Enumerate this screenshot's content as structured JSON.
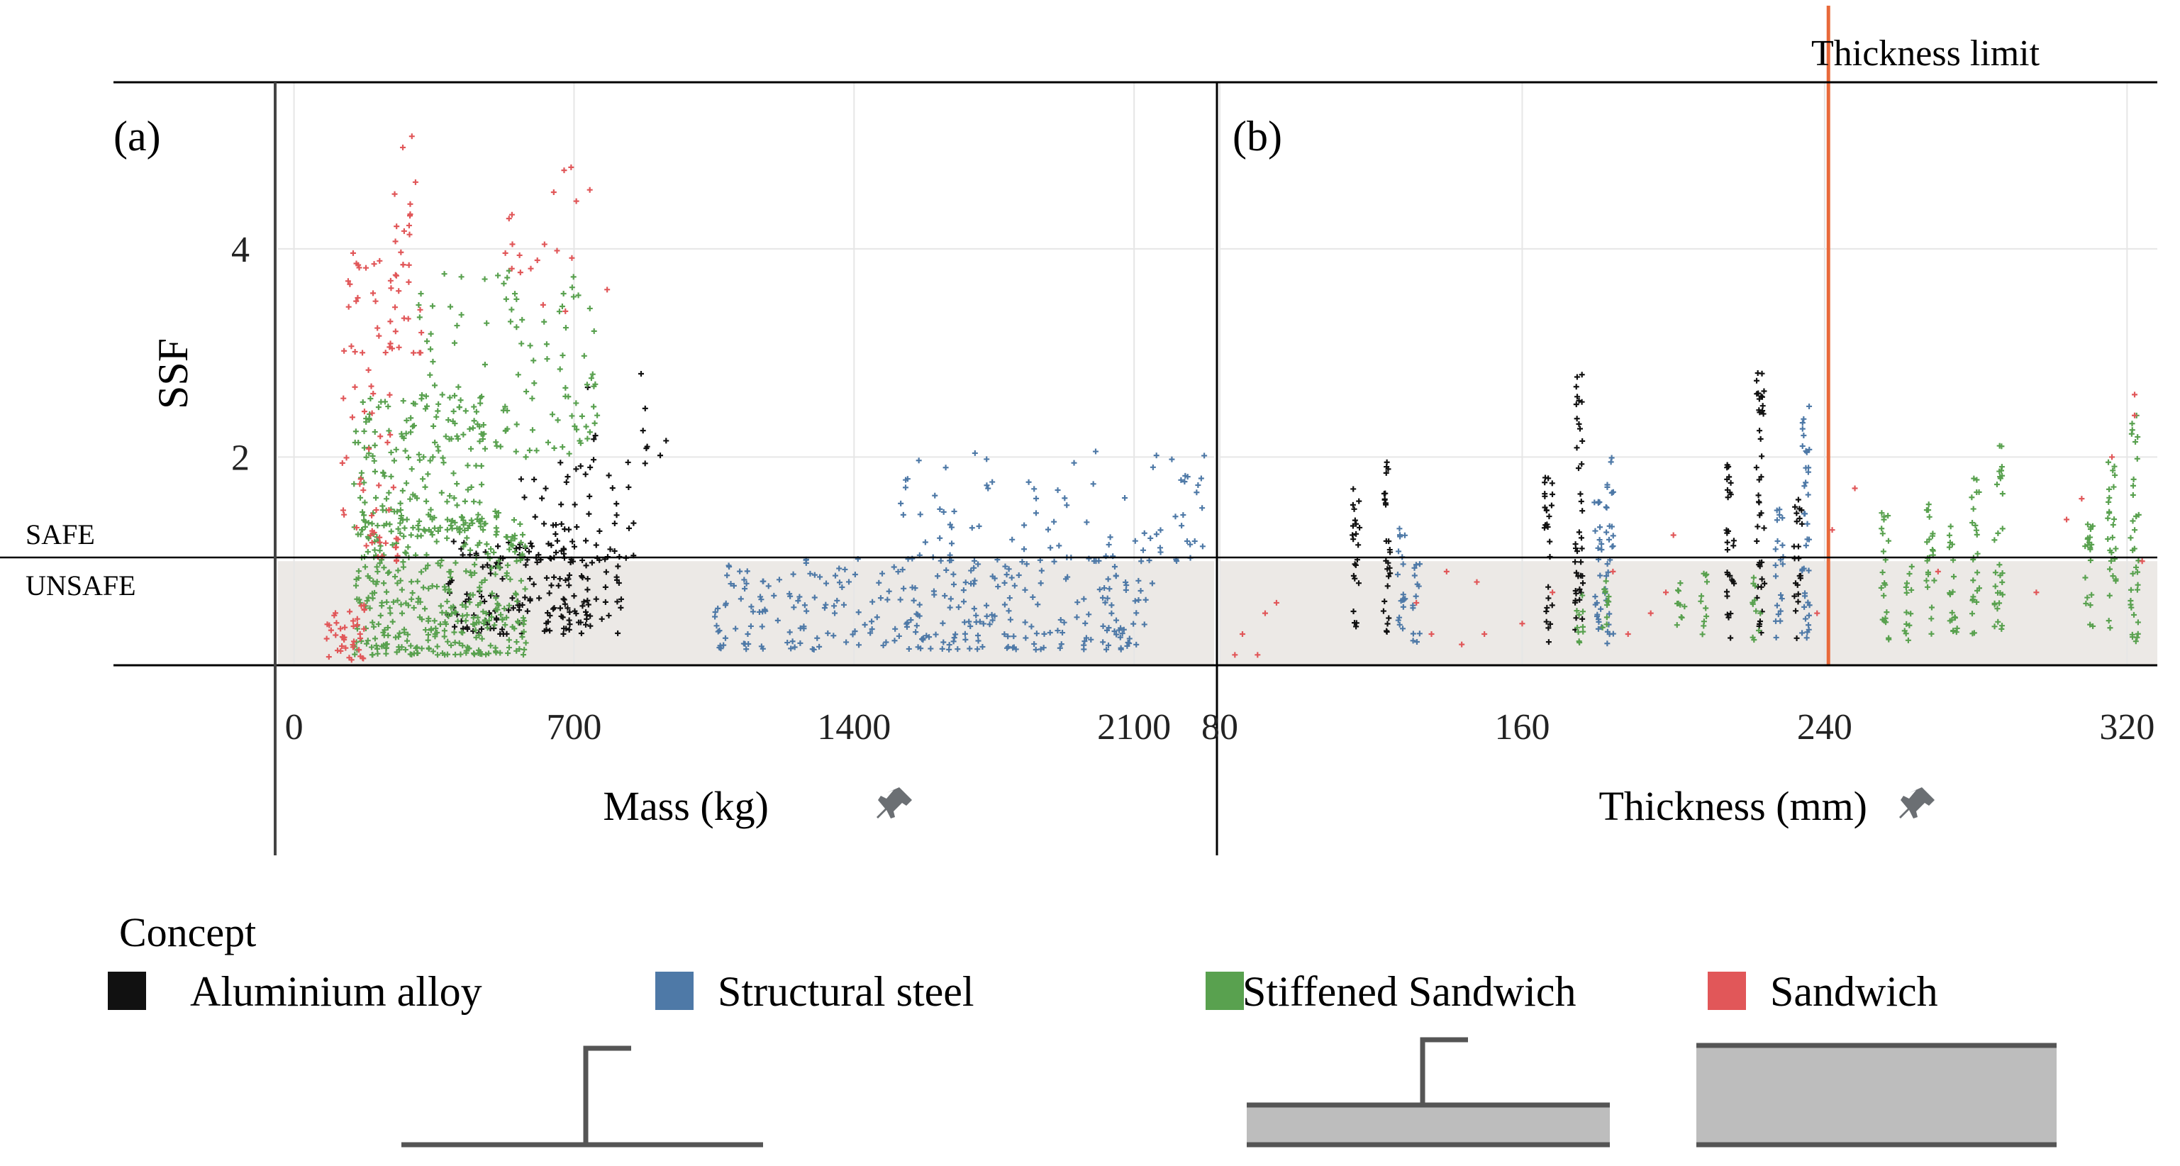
{
  "colors": {
    "aluminium": "#111111",
    "steel": "#4e79a7",
    "stiffened": "#59a14f",
    "sandwich": "#e15759",
    "threshold_line": "#e8693a",
    "unsafe_band": "#ece9e6",
    "grid": "#e6e6e6",
    "axis": "#000000",
    "pin": "#6b6f73"
  },
  "labels": {
    "safe": "SAFE",
    "unsafe": "UNSAFE"
  },
  "legend": {
    "title": "Concept",
    "items": [
      {
        "key": "aluminium",
        "label": "Aluminium alloy"
      },
      {
        "key": "steel",
        "label": "Structural steel"
      },
      {
        "key": "stiffened",
        "label": "Stiffened Sandwich"
      },
      {
        "key": "sandwich",
        "label": "Sandwich"
      }
    ]
  },
  "icons": {
    "pin_a": "pin-icon",
    "pin_b": "pin-icon"
  },
  "chart_data": [
    {
      "id": "a",
      "panel_label": "(a)",
      "type": "scatter",
      "title": "",
      "xlabel": "Mass (kg)",
      "ylabel": "SSF",
      "xlim": [
        -40,
        2300
      ],
      "ylim": [
        0,
        5.6
      ],
      "xticks": [
        0,
        700,
        1400,
        2100
      ],
      "yticks": [
        2,
        4
      ],
      "safe_threshold": 1.0,
      "series": [
        {
          "name": "Aluminium alloy",
          "key": "aluminium",
          "clusters": [
            {
              "x": [
                380,
                820
              ],
              "y": [
                0.3,
                1.2
              ],
              "n": 170
            },
            {
              "x": [
                560,
                860
              ],
              "y": [
                1.0,
                2.0
              ],
              "n": 55
            },
            {
              "x": [
                700,
                940
              ],
              "y": [
                1.9,
                2.9
              ],
              "n": 12
            }
          ]
        },
        {
          "name": "Structural steel",
          "key": "steel",
          "clusters": [
            {
              "x": [
                1050,
                2150
              ],
              "y": [
                0.15,
                1.05
              ],
              "n": 300
            },
            {
              "x": [
                1500,
                2300
              ],
              "y": [
                1.0,
                2.1
              ],
              "n": 90
            }
          ]
        },
        {
          "name": "Stiffened Sandwich",
          "key": "stiffened",
          "clusters": [
            {
              "x": [
                150,
                580
              ],
              "y": [
                0.1,
                1.5
              ],
              "n": 380
            },
            {
              "x": [
                150,
                480
              ],
              "y": [
                1.3,
                2.6
              ],
              "n": 170
            },
            {
              "x": [
                300,
                760
              ],
              "y": [
                2.0,
                3.8
              ],
              "n": 110
            }
          ]
        },
        {
          "name": "Sandwich",
          "key": "sandwich",
          "clusters": [
            {
              "x": [
                80,
                180
              ],
              "y": [
                0.05,
                0.6
              ],
              "n": 40
            },
            {
              "x": [
                120,
                260
              ],
              "y": [
                1.0,
                4.0
              ],
              "n": 70
            },
            {
              "x": [
                240,
                320
              ],
              "y": [
                3.0,
                5.3
              ],
              "n": 30
            },
            {
              "x": [
                520,
                790
              ],
              "y": [
                3.4,
                4.8
              ],
              "n": 20
            }
          ]
        }
      ]
    },
    {
      "id": "b",
      "panel_label": "(b)",
      "type": "scatter",
      "title": "",
      "xlabel": "Thickness (mm)",
      "ylabel": "",
      "xlim": [
        80,
        328
      ],
      "ylim": [
        0,
        5.6
      ],
      "xticks": [
        80,
        160,
        240,
        320
      ],
      "yticks": [
        2,
        4
      ],
      "safe_threshold": 1.0,
      "threshold_line": {
        "x": 241,
        "label": "Thickness  limit"
      },
      "series": [
        {
          "name": "Aluminium alloy",
          "key": "aluminium",
          "columns": [
            {
              "x": 116,
              "ymin": 0.3,
              "ymax": 1.7
            },
            {
              "x": 124,
              "ymin": 0.3,
              "ymax": 2.0
            },
            {
              "x": 167,
              "ymin": 0.2,
              "ymax": 1.9
            },
            {
              "x": 175,
              "ymin": 0.3,
              "ymax": 2.8
            },
            {
              "x": 215,
              "ymin": 0.2,
              "ymax": 2.0
            },
            {
              "x": 223,
              "ymin": 0.3,
              "ymax": 2.9
            },
            {
              "x": 233,
              "ymin": 0.2,
              "ymax": 1.6
            }
          ]
        },
        {
          "name": "Structural steel",
          "key": "steel",
          "columns": [
            {
              "x": 128,
              "ymin": 0.3,
              "ymax": 1.4
            },
            {
              "x": 132,
              "ymin": 0.2,
              "ymax": 1.0
            },
            {
              "x": 180,
              "ymin": 0.2,
              "ymax": 1.6
            },
            {
              "x": 183,
              "ymin": 0.2,
              "ymax": 2.0
            },
            {
              "x": 228,
              "ymin": 0.2,
              "ymax": 1.5
            },
            {
              "x": 235,
              "ymin": 0.2,
              "ymax": 2.5
            }
          ]
        },
        {
          "name": "Stiffened Sandwich",
          "key": "stiffened",
          "columns": [
            {
              "x": 175,
              "ymin": 0.2,
              "ymax": 0.8
            },
            {
              "x": 182,
              "ymin": 0.2,
              "ymax": 0.9
            },
            {
              "x": 202,
              "ymin": 0.2,
              "ymax": 0.8
            },
            {
              "x": 208,
              "ymin": 0.2,
              "ymax": 0.9
            },
            {
              "x": 222,
              "ymin": 0.2,
              "ymax": 0.9
            },
            {
              "x": 256,
              "ymin": 0.2,
              "ymax": 1.5
            },
            {
              "x": 262,
              "ymin": 0.2,
              "ymax": 1.0
            },
            {
              "x": 268,
              "ymin": 0.3,
              "ymax": 1.7
            },
            {
              "x": 274,
              "ymin": 0.2,
              "ymax": 1.4
            },
            {
              "x": 280,
              "ymin": 0.3,
              "ymax": 1.8
            },
            {
              "x": 286,
              "ymin": 0.3,
              "ymax": 2.2
            },
            {
              "x": 310,
              "ymin": 0.3,
              "ymax": 1.6
            },
            {
              "x": 316,
              "ymin": 0.3,
              "ymax": 2.0
            },
            {
              "x": 322,
              "ymin": 0.2,
              "ymax": 2.4
            }
          ]
        },
        {
          "name": "Sandwich",
          "key": "sandwich",
          "points": [
            [
              84,
              0.1
            ],
            [
              86,
              0.3
            ],
            [
              90,
              0.1
            ],
            [
              92,
              0.5
            ],
            [
              95,
              0.6
            ],
            [
              132,
              0.6
            ],
            [
              136,
              0.3
            ],
            [
              140,
              0.9
            ],
            [
              144,
              0.2
            ],
            [
              148,
              0.8
            ],
            [
              150,
              0.3
            ],
            [
              160,
              0.4
            ],
            [
              168,
              0.7
            ],
            [
              184,
              0.9
            ],
            [
              188,
              0.3
            ],
            [
              194,
              0.5
            ],
            [
              198,
              0.7
            ],
            [
              200,
              1.25
            ],
            [
              238,
              0.5
            ],
            [
              242,
              1.3
            ],
            [
              248,
              1.7
            ],
            [
              270,
              0.9
            ],
            [
              296,
              0.7
            ],
            [
              304,
              1.4
            ],
            [
              308,
              1.6
            ],
            [
              316,
              2.0
            ],
            [
              322,
              2.6
            ],
            [
              322,
              2.4
            ],
            [
              324,
              1.0
            ],
            [
              328,
              1.4
            ]
          ]
        }
      ]
    }
  ]
}
